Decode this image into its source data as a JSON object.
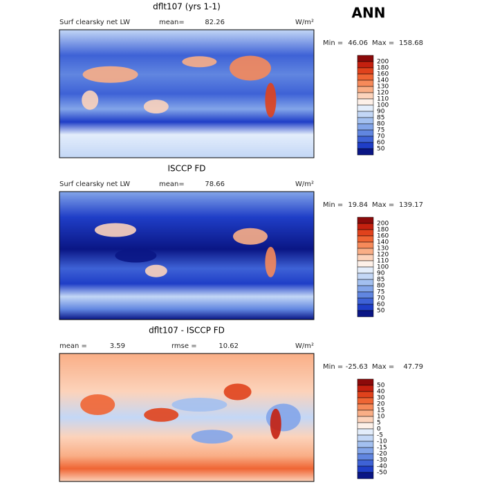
{
  "season": "ANN",
  "panels": [
    {
      "title": "dflt107 (yrs 1-1)",
      "variable": "Surf clearsky net LW",
      "stat1_label": "mean=",
      "stat1_value": 82.26,
      "units": "W/m²",
      "min_label": "Min =",
      "min_value": 46.06,
      "max_label": "Max =",
      "max_value": 158.68,
      "colorbar_labels": [
        200,
        180,
        160,
        140,
        130,
        120,
        110,
        100,
        90,
        85,
        80,
        75,
        70,
        60,
        50
      ],
      "colorbar_colors": [
        "#8b0a0a",
        "#c4200f",
        "#e0421c",
        "#ef6534",
        "#f68a5a",
        "#f9ae86",
        "#fcd3bb",
        "#fdf0e8",
        "#e3edfb",
        "#c3d7f6",
        "#a3c0f0",
        "#83a5e9",
        "#6186e0",
        "#3e62d6",
        "#1f3ec7",
        "#0a1685"
      ]
    },
    {
      "title": "ISCCP FD",
      "variable": "Surf clearsky net LW",
      "stat1_label": "mean=",
      "stat1_value": 78.66,
      "units": "W/m²",
      "min_label": "Min =",
      "min_value": 19.84,
      "max_label": "Max =",
      "max_value": 139.17,
      "colorbar_labels": [
        200,
        180,
        160,
        140,
        130,
        120,
        110,
        100,
        90,
        85,
        80,
        75,
        70,
        60,
        50
      ],
      "colorbar_colors": [
        "#8b0a0a",
        "#c4200f",
        "#e0421c",
        "#ef6534",
        "#f68a5a",
        "#f9ae86",
        "#fcd3bb",
        "#fdf0e8",
        "#e3edfb",
        "#c3d7f6",
        "#a3c0f0",
        "#83a5e9",
        "#6186e0",
        "#3e62d6",
        "#1f3ec7",
        "#0a1685"
      ]
    },
    {
      "title": "dflt107 - ISCCP FD",
      "stat1_label": "mean =",
      "stat1_value": 3.59,
      "stat2_label": "rmse =",
      "stat2_value": 10.62,
      "units": "W/m²",
      "min_label": "Min =",
      "min_value": -25.63,
      "max_label": "Max =",
      "max_value": 47.79,
      "colorbar_labels": [
        50,
        40,
        30,
        20,
        15,
        10,
        5,
        0,
        -5,
        -10,
        -15,
        -20,
        -30,
        -40,
        -50
      ],
      "colorbar_colors": [
        "#8b0a0a",
        "#c4200f",
        "#e0421c",
        "#ef6534",
        "#f68a5a",
        "#f9ae86",
        "#fcd3bb",
        "#fdf0e8",
        "#e3edfb",
        "#c3d7f6",
        "#a3c0f0",
        "#83a5e9",
        "#6186e0",
        "#3e62d6",
        "#1f3ec7",
        "#0a1685"
      ]
    }
  ]
}
